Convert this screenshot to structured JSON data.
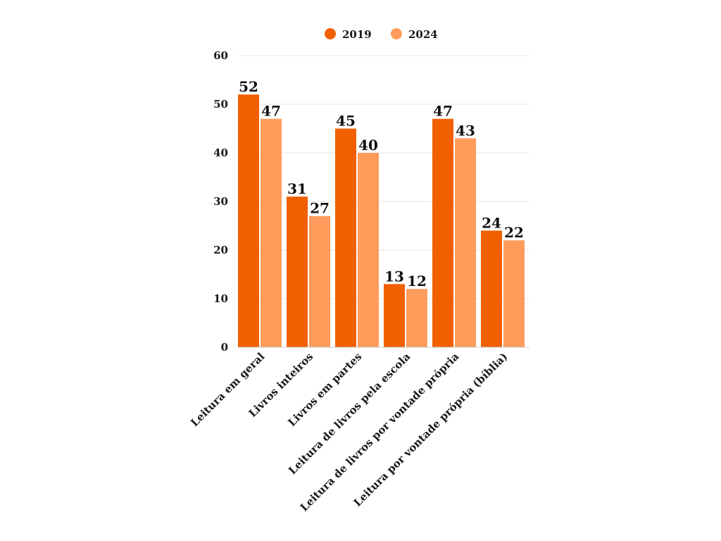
{
  "chart_data": {
    "type": "bar",
    "categories": [
      "Leitura em geral",
      "Livros inteiros",
      "Livros em partes",
      "Leitura de livros pela escola",
      "Leitura de livros por vontade própria",
      "Leitura por vontade própria (bíblia)"
    ],
    "series": [
      {
        "name": "2019",
        "values": [
          52,
          31,
          45,
          13,
          47,
          24
        ],
        "color": "#f06000"
      },
      {
        "name": "2024",
        "values": [
          47,
          27,
          40,
          12,
          43,
          22
        ],
        "color": "#ff9c5c"
      }
    ],
    "ylim": [
      0,
      60
    ],
    "yticks": [
      0,
      10,
      20,
      30,
      40,
      50,
      60
    ],
    "grid": true,
    "legend_position": "top-center",
    "data_labels": true
  }
}
